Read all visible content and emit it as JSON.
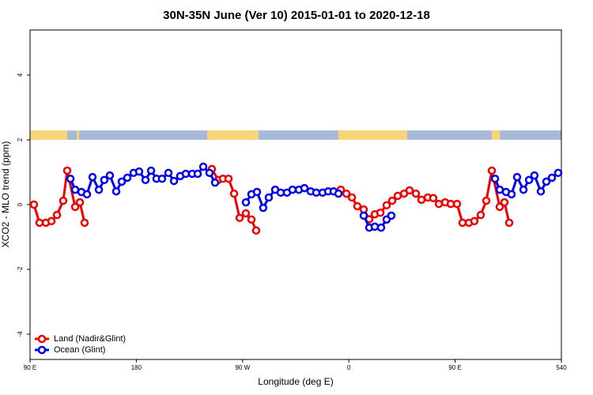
{
  "chart_data": {
    "type": "line",
    "title": "30N-35N June (Ver 10)   2015-01-01 to 2020-12-18",
    "x_label": "Longitude (deg E)",
    "y_label": "XCO2 - MLO trend (ppm)",
    "xlim": [
      90,
      540
    ],
    "ylim": [
      -4.78,
      5.39
    ],
    "xticks": [
      {
        "value": 90,
        "label": "90 E"
      },
      180,
      {
        "value": 270,
        "label": "90 W"
      },
      {
        "value": 360,
        "label": "0"
      },
      {
        "value": 450,
        "label": "90 E"
      },
      540
    ],
    "yticks": [
      -4,
      -2,
      0,
      2,
      4
    ],
    "legend": "bottomleft",
    "land_mask": {
      "ylim": [
        2,
        2.29
      ],
      "land_color": "#f7d67a",
      "ocean_color": "#a7b9d9",
      "land": [
        [
          90,
          121.5
        ],
        [
          129.5,
          131.5
        ],
        [
          240,
          283.5
        ],
        [
          351,
          409.5
        ],
        [
          481,
          488
        ]
      ]
    },
    "series": [
      {
        "name": "Land (Nadir&Glint)",
        "color": "#ee0000",
        "x": [
          93.3,
          98.0,
          103.4,
          108.1,
          112.8,
          118.1,
          121.5,
          128.2,
          132.2,
          136.2,
          null,
          244.0,
          249.4,
          253.4,
          258.1,
          262.8,
          267.5,
          272.8,
          277.5,
          281.5,
          null,
          353.2,
          357.9,
          362.6,
          367.2,
          372.6,
          377.3,
          382.0,
          386.7,
          392.0,
          396.7,
          401.4,
          406.8,
          411.4,
          416.8,
          421.5,
          426.9,
          431.5,
          436.2,
          441.6,
          446.3,
          451.6,
          456.3,
          461.7,
          466.3,
          471.7,
          476.4,
          481.1,
          487.8,
          491.8,
          495.8
        ],
        "values": [
          0,
          -0.56,
          -0.56,
          -0.51,
          -0.32,
          0.12,
          1.05,
          -0.07,
          0.07,
          -0.56,
          null,
          1.1,
          0.76,
          0.8,
          0.8,
          0.34,
          -0.41,
          -0.27,
          -0.46,
          -0.8,
          null,
          0.46,
          0.34,
          0.22,
          -0.05,
          -0.15,
          -0.45,
          -0.3,
          -0.25,
          -0.02,
          0.12,
          0.27,
          0.34,
          0.44,
          0.34,
          0.15,
          0.22,
          0.2,
          0.02,
          0.07,
          0.02,
          0.02,
          -0.56,
          -0.56,
          -0.51,
          -0.32,
          0.12,
          1.05,
          -0.07,
          0.07,
          -0.56
        ]
      },
      {
        "name": "Ocean (Glint)",
        "color": "#0000ee",
        "x": [
          124.2,
          128.2,
          133.5,
          138.2,
          142.9,
          148.3,
          152.9,
          157.6,
          163.0,
          167.7,
          172.4,
          177.7,
          182.4,
          187.8,
          192.5,
          197.1,
          201.8,
          207.2,
          211.9,
          217.2,
          221.9,
          227.3,
          232.0,
          236.7,
          242.0,
          246.7,
          null,
          272.8,
          277.5,
          282.2,
          287.5,
          292.2,
          297.6,
          302.3,
          307.6,
          312.3,
          317.7,
          322.4,
          327.7,
          332.4,
          337.8,
          342.5,
          347.1,
          351.2,
          null,
          372.6,
          377.3,
          382.0,
          387.3,
          392.0,
          396.0,
          null,
          483.8,
          487.8,
          493.1,
          497.8,
          502.5,
          507.9,
          512.6,
          517.2,
          522.6,
          527.3,
          532.0,
          537.3
        ],
        "values": [
          0.8,
          0.46,
          0.39,
          0.32,
          0.85,
          0.46,
          0.76,
          0.9,
          0.41,
          0.71,
          0.83,
          0.98,
          1.02,
          0.76,
          1.05,
          0.8,
          0.8,
          0.98,
          0.73,
          0.88,
          0.95,
          0.95,
          0.95,
          1.17,
          0.98,
          0.68,
          null,
          0.07,
          0.32,
          0.39,
          -0.1,
          0.22,
          0.46,
          0.37,
          0.37,
          0.46,
          0.46,
          0.51,
          0.41,
          0.37,
          0.37,
          0.41,
          0.41,
          0.34,
          null,
          -0.34,
          -0.71,
          -0.68,
          -0.71,
          -0.46,
          -0.34,
          null,
          0.8,
          0.46,
          0.39,
          0.32,
          0.85,
          0.46,
          0.76,
          0.9,
          0.41,
          0.71,
          0.83,
          0.98
        ]
      }
    ]
  }
}
